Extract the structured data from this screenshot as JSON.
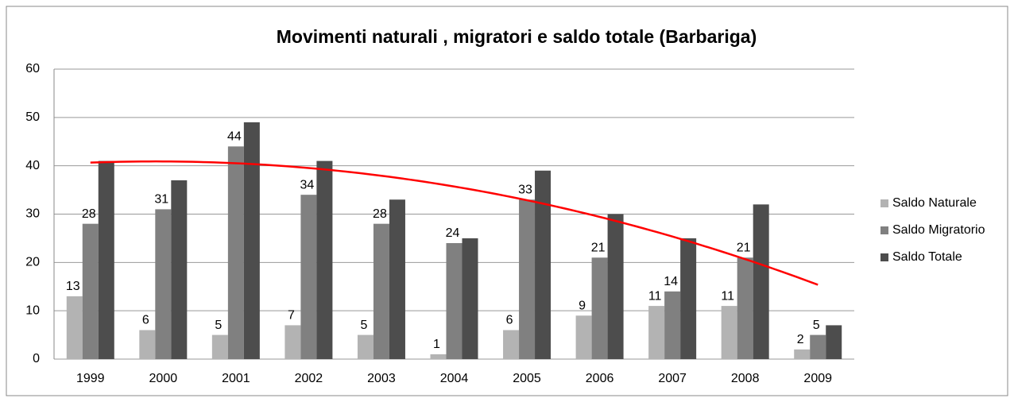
{
  "chart_data": {
    "type": "bar",
    "title": "Movimenti naturali , migratori e saldo totale (Barbariga)",
    "categories": [
      "1999",
      "2000",
      "2001",
      "2002",
      "2003",
      "2004",
      "2005",
      "2006",
      "2007",
      "2008",
      "2009"
    ],
    "series": [
      {
        "name": "Saldo Naturale",
        "color": "#b3b3b3",
        "values": [
          13,
          6,
          5,
          7,
          5,
          1,
          6,
          9,
          11,
          11,
          2
        ],
        "data_labels": true
      },
      {
        "name": "Saldo Migratorio",
        "color": "#808080",
        "values": [
          28,
          31,
          44,
          34,
          28,
          24,
          33,
          21,
          14,
          21,
          5
        ],
        "data_labels": true
      },
      {
        "name": "Saldo Totale",
        "color": "#4d4d4d",
        "values": [
          41,
          37,
          49,
          41,
          33,
          25,
          39,
          30,
          25,
          32,
          7
        ],
        "data_labels": false,
        "trendline": "polynomial",
        "trendline_color": "#ff0000"
      }
    ],
    "ylim": [
      0,
      60
    ],
    "yticks": [
      0,
      10,
      20,
      30,
      40,
      50,
      60
    ],
    "grid": true,
    "legend": "right"
  }
}
